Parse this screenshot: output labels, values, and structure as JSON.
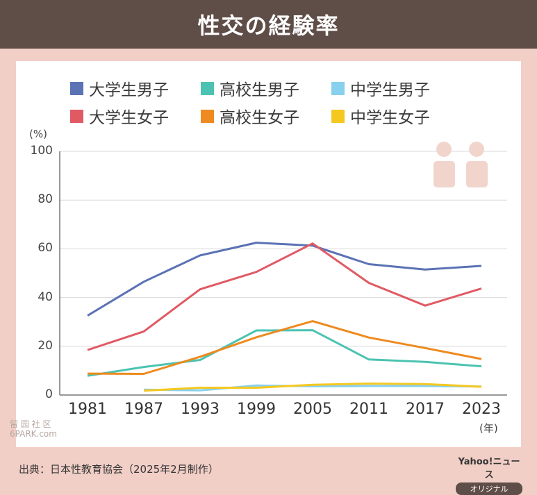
{
  "title": "性交の経験率",
  "chart_data": {
    "type": "line",
    "x": [
      "1981",
      "1987",
      "1993",
      "1999",
      "2005",
      "2011",
      "2017",
      "2023"
    ],
    "xunit": "(年)",
    "yunit": "(%)",
    "ylim": [
      0,
      100
    ],
    "yticks": [
      "0",
      "20",
      "40",
      "60",
      "80",
      "100"
    ],
    "grid": true,
    "legend_position": "top",
    "series": [
      {
        "name": "大学生男子",
        "color": "#5b72b5",
        "values": [
          32.6,
          46.5,
          57.3,
          62.5,
          61.3,
          53.7,
          51.5,
          53.0
        ]
      },
      {
        "name": "高校生男子",
        "color": "#4cc3b2",
        "values": [
          7.9,
          11.5,
          14.4,
          26.5,
          26.6,
          14.6,
          13.6,
          11.8
        ]
      },
      {
        "name": "中学生男子",
        "color": "#87d0ee",
        "values": [
          null,
          2.2,
          1.9,
          3.9,
          3.6,
          3.7,
          3.7,
          3.5
        ]
      },
      {
        "name": "大学生女子",
        "color": "#e05a64",
        "values": [
          18.5,
          26.1,
          43.4,
          50.5,
          62.2,
          46.0,
          36.7,
          43.7
        ]
      },
      {
        "name": "高校生女子",
        "color": "#ee8a1f",
        "values": [
          8.8,
          8.7,
          15.7,
          23.7,
          30.3,
          23.6,
          19.3,
          14.8
        ]
      },
      {
        "name": "中学生女子",
        "color": "#f5c820",
        "values": [
          null,
          1.8,
          3.0,
          3.0,
          4.2,
          4.7,
          4.5,
          3.4
        ]
      }
    ]
  },
  "source": "出典：日本性教育協会（2025年2月制作）",
  "watermark": {
    "line1": "留 园 社 区",
    "line2": "6PARK.com"
  },
  "brand": {
    "name": "Yahoo!ニュース",
    "badge": "オリジナル"
  },
  "icon": "two-people-icon"
}
